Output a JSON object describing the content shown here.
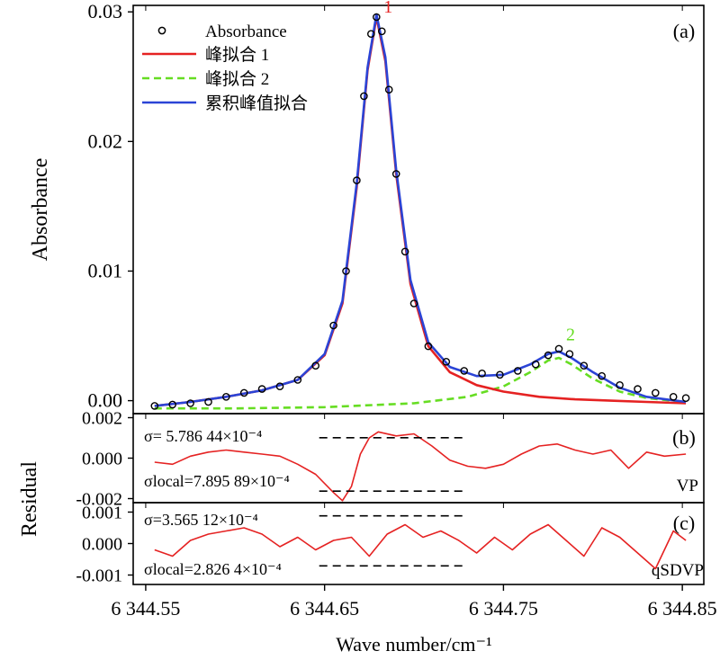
{
  "chart_data": [
    {
      "panel": "(a)",
      "type": "scatter",
      "ylabel": "Absorbance",
      "ylim": [
        -0.001,
        0.0305
      ],
      "xlim": [
        6344.543,
        6344.862
      ],
      "yticks": [
        0.0,
        0.01,
        0.02,
        0.03
      ],
      "ytick_labels": [
        "0.00",
        "0.01",
        "0.02",
        "0.03"
      ],
      "legend_position": "top-left",
      "peak_labels": [
        {
          "text": "1",
          "x": 6344.679,
          "y": 0.0298,
          "color": "#e52222"
        },
        {
          "text": "2",
          "x": 6344.781,
          "y": 0.0045,
          "color": "#66dd22"
        }
      ],
      "series": [
        {
          "name": "Absorbance",
          "style": "open-circle",
          "color": "#000000",
          "x": [
            6344.555,
            6344.565,
            6344.575,
            6344.585,
            6344.595,
            6344.605,
            6344.615,
            6344.625,
            6344.635,
            6344.645,
            6344.655,
            6344.662,
            6344.668,
            6344.672,
            6344.676,
            6344.679,
            6344.682,
            6344.686,
            6344.69,
            6344.695,
            6344.7,
            6344.708,
            6344.718,
            6344.728,
            6344.738,
            6344.748,
            6344.758,
            6344.768,
            6344.775,
            6344.781,
            6344.787,
            6344.795,
            6344.805,
            6344.815,
            6344.825,
            6344.835,
            6344.845,
            6344.852
          ],
          "values": [
            -0.0004,
            -0.0003,
            -0.0002,
            -0.0001,
            0.0003,
            0.0006,
            0.0009,
            0.0011,
            0.0016,
            0.0027,
            0.0058,
            0.01,
            0.017,
            0.0235,
            0.0283,
            0.0296,
            0.0285,
            0.024,
            0.0175,
            0.0115,
            0.0075,
            0.0042,
            0.003,
            0.0023,
            0.0021,
            0.002,
            0.0023,
            0.0028,
            0.0035,
            0.004,
            0.0036,
            0.0027,
            0.0019,
            0.0012,
            0.0009,
            0.0006,
            0.0003,
            0.0002
          ]
        },
        {
          "name": "峰拟合 1",
          "style": "solid",
          "color": "#e52222",
          "x": [
            6344.555,
            6344.575,
            6344.595,
            6344.615,
            6344.635,
            6344.65,
            6344.66,
            6344.668,
            6344.674,
            6344.679,
            6344.684,
            6344.69,
            6344.698,
            6344.708,
            6344.72,
            6344.735,
            6344.75,
            6344.77,
            6344.79,
            6344.81,
            6344.83,
            6344.852
          ],
          "values": [
            -0.0004,
            -0.0001,
            0.0003,
            0.0008,
            0.0016,
            0.0035,
            0.0075,
            0.0165,
            0.0255,
            0.0296,
            0.0262,
            0.0175,
            0.009,
            0.0042,
            0.0022,
            0.0012,
            0.0007,
            0.0003,
            0.0001,
            0.0,
            -0.0001,
            -0.0002
          ]
        },
        {
          "name": "峰拟合 2",
          "style": "dashed",
          "color": "#66dd22",
          "x": [
            6344.555,
            6344.6,
            6344.65,
            6344.7,
            6344.73,
            6344.75,
            6344.765,
            6344.775,
            6344.781,
            6344.788,
            6344.8,
            6344.815,
            6344.83,
            6344.852
          ],
          "values": [
            -0.0006,
            -0.0006,
            -0.0005,
            -0.0002,
            0.0003,
            0.0011,
            0.0022,
            0.0031,
            0.0033,
            0.0028,
            0.0017,
            0.0007,
            0.0002,
            -0.0001
          ]
        },
        {
          "name": "累积峰值拟合",
          "style": "solid",
          "color": "#2b44d6",
          "x": [
            6344.555,
            6344.575,
            6344.595,
            6344.615,
            6344.635,
            6344.65,
            6344.66,
            6344.668,
            6344.674,
            6344.679,
            6344.684,
            6344.69,
            6344.698,
            6344.708,
            6344.72,
            6344.735,
            6344.75,
            6344.765,
            6344.775,
            6344.781,
            6344.788,
            6344.8,
            6344.815,
            6344.83,
            6344.852
          ],
          "values": [
            -0.0004,
            -0.0001,
            0.0003,
            0.0008,
            0.0016,
            0.0036,
            0.0077,
            0.0168,
            0.0257,
            0.0298,
            0.0265,
            0.0178,
            0.0093,
            0.0045,
            0.0026,
            0.0019,
            0.002,
            0.0028,
            0.0036,
            0.0038,
            0.0033,
            0.0022,
            0.001,
            0.0003,
            -0.0001
          ]
        }
      ]
    },
    {
      "panel": "(b)",
      "type": "line",
      "ylabel": "Residual",
      "ylim": [
        -0.0022,
        0.0022
      ],
      "yticks": [
        -0.002,
        0.0,
        0.002
      ],
      "ytick_labels": [
        "-0.002",
        "0.000",
        "0.002"
      ],
      "model": "VP",
      "sigma_text": "σ= 5.786 44×10⁻⁴",
      "sigma_local_text": "σlocal=7.895 89×10⁻⁴",
      "sigma_level": 0.00101,
      "sigma_local_level": -0.00163,
      "sigma_range": [
        6344.647,
        6344.728
      ],
      "sigma_local_range": [
        6344.647,
        6344.728
      ],
      "series": [
        {
          "name": "",
          "color": "#e52222",
          "x": [
            6344.555,
            6344.565,
            6344.575,
            6344.585,
            6344.595,
            6344.605,
            6344.615,
            6344.625,
            6344.635,
            6344.645,
            6344.655,
            6344.66,
            6344.665,
            6344.67,
            6344.675,
            6344.68,
            6344.69,
            6344.7,
            6344.71,
            6344.72,
            6344.73,
            6344.74,
            6344.75,
            6344.76,
            6344.77,
            6344.78,
            6344.79,
            6344.8,
            6344.81,
            6344.82,
            6344.83,
            6344.84,
            6344.852
          ],
          "values": [
            -0.0002,
            -0.0003,
            0.0001,
            0.0003,
            0.0004,
            0.0003,
            0.0002,
            0.0001,
            -0.0003,
            -0.0008,
            -0.0017,
            -0.0021,
            -0.0014,
            0.0002,
            0.001,
            0.0013,
            0.0011,
            0.0012,
            0.0006,
            -0.0001,
            -0.0004,
            -0.0005,
            -0.0003,
            0.0002,
            0.0006,
            0.0007,
            0.0004,
            0.0002,
            0.0004,
            -0.0005,
            0.0003,
            0.0001,
            0.0002
          ]
        }
      ]
    },
    {
      "panel": "(c)",
      "type": "line",
      "ylabel": "Residual",
      "ylim": [
        -0.0013,
        0.0013
      ],
      "yticks": [
        -0.001,
        0.0,
        0.001
      ],
      "ytick_labels": [
        "-0.001",
        "0.000",
        "0.001"
      ],
      "model": "qSDVP",
      "sigma_text": "σ=3.565 12×10⁻⁴",
      "sigma_local_text": "σlocal=2.826 4×10⁻⁴",
      "sigma_level": 0.00088,
      "sigma_local_level": -0.00071,
      "sigma_range": [
        6344.647,
        6344.728
      ],
      "sigma_local_range": [
        6344.647,
        6344.728
      ],
      "series": [
        {
          "name": "",
          "color": "#e52222",
          "x": [
            6344.555,
            6344.565,
            6344.575,
            6344.585,
            6344.595,
            6344.605,
            6344.615,
            6344.625,
            6344.635,
            6344.645,
            6344.655,
            6344.665,
            6344.675,
            6344.685,
            6344.695,
            6344.705,
            6344.715,
            6344.725,
            6344.735,
            6344.745,
            6344.755,
            6344.765,
            6344.775,
            6344.785,
            6344.795,
            6344.805,
            6344.815,
            6344.825,
            6344.835,
            6344.845,
            6344.852
          ],
          "values": [
            -0.0002,
            -0.0004,
            0.0001,
            0.0003,
            0.0004,
            0.0005,
            0.0003,
            -0.0001,
            0.0002,
            -0.0002,
            0.0001,
            0.0002,
            -0.0004,
            0.0003,
            0.0006,
            0.0002,
            0.0004,
            0.0001,
            -0.0003,
            0.0002,
            -0.0002,
            0.0003,
            0.0006,
            0.0001,
            -0.0004,
            0.0005,
            0.0002,
            -0.0003,
            -0.0008,
            0.0004,
            0.0001
          ]
        }
      ]
    }
  ],
  "xaxis": {
    "xlabel": "Wave number/cm⁻¹",
    "ticks": [
      6344.55,
      6344.65,
      6344.75,
      6344.85
    ],
    "tick_labels": [
      "6 344.55",
      "6 344.65",
      "6 344.75",
      "6 344.85"
    ]
  }
}
